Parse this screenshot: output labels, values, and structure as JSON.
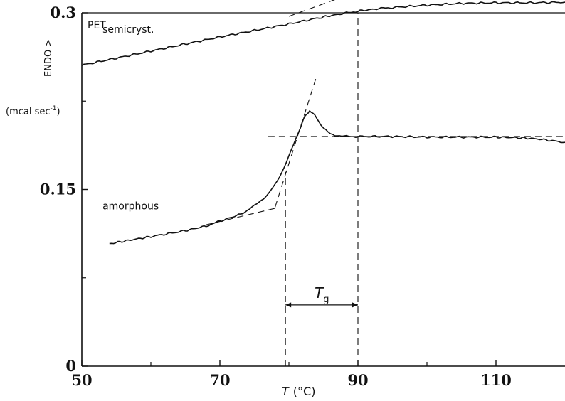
{
  "chart_data": {
    "type": "line",
    "title": "",
    "panel_label": "PET",
    "xlabel": {
      "symbol": "T",
      "unit": "(°C)"
    },
    "ylabel": {
      "line1": "ENDO >",
      "line2": "(mcal sec",
      "exp": "-1",
      "close": ")"
    },
    "xlim": [
      50,
      120
    ],
    "ylim": [
      0,
      0.3
    ],
    "x_ticks": [
      50,
      70,
      90,
      110
    ],
    "x_tick_labels": [
      "50",
      "70",
      "90",
      "110"
    ],
    "x_minor_ticks": [
      60,
      80,
      100
    ],
    "y_ticks": [
      0,
      0.15,
      0.3
    ],
    "y_tick_labels": [
      "0",
      "0.15",
      "0.3"
    ],
    "y_minor_ticks": [
      0.075,
      0.225
    ],
    "grid": false,
    "legend": "none",
    "series": [
      {
        "name": "semicryst.",
        "style": "solid",
        "x": [
          50,
          55,
          60,
          65,
          70,
          75,
          80,
          85,
          88,
          90,
          93,
          95,
          100,
          105,
          110,
          115,
          120
        ],
        "y": [
          0.2555,
          0.2615,
          0.2675,
          0.2735,
          0.2795,
          0.285,
          0.2905,
          0.2965,
          0.2995,
          0.3015,
          0.3035,
          0.3045,
          0.3065,
          0.308,
          0.3085,
          0.3085,
          0.309
        ]
      },
      {
        "name": "amorphous",
        "style": "solid",
        "x": [
          54,
          57,
          60,
          65,
          68,
          70,
          73,
          75,
          77,
          78,
          79,
          80,
          81,
          82,
          82.5,
          83,
          83.5,
          84,
          85,
          86,
          87,
          88,
          90,
          95,
          100,
          105,
          110,
          113,
          116,
          120
        ],
        "y": [
          0.104,
          0.107,
          0.11,
          0.115,
          0.119,
          0.123,
          0.129,
          0.136,
          0.146,
          0.154,
          0.165,
          0.178,
          0.193,
          0.208,
          0.214,
          0.216,
          0.215,
          0.211,
          0.202,
          0.197,
          0.196,
          0.195,
          0.195,
          0.195,
          0.1945,
          0.1945,
          0.1945,
          0.194,
          0.193,
          0.19
        ]
      }
    ],
    "construction_lines": [
      {
        "x": [
          68,
          78
        ],
        "y": [
          0.12,
          0.134
        ]
      },
      {
        "x": [
          78,
          84
        ],
        "y": [
          0.135,
          0.246
        ]
      },
      {
        "x": [
          77,
          120
        ],
        "y": [
          0.195,
          0.195
        ]
      },
      {
        "x": [
          80,
          100
        ],
        "y": [
          0.297,
          0.3395
        ]
      },
      {
        "x": [
          79.5,
          79.5
        ],
        "y": [
          0,
          0.165
        ]
      },
      {
        "x": [
          90,
          90
        ],
        "y": [
          0,
          0.3
        ]
      }
    ],
    "annotations": [
      {
        "text": "semicryst.",
        "x": 53,
        "y": 0.283
      },
      {
        "text": "amorphous",
        "x": 53,
        "y": 0.133
      },
      {
        "text": "T",
        "sub": "g",
        "x_range": [
          79.5,
          90
        ],
        "y": 0.052
      }
    ]
  }
}
